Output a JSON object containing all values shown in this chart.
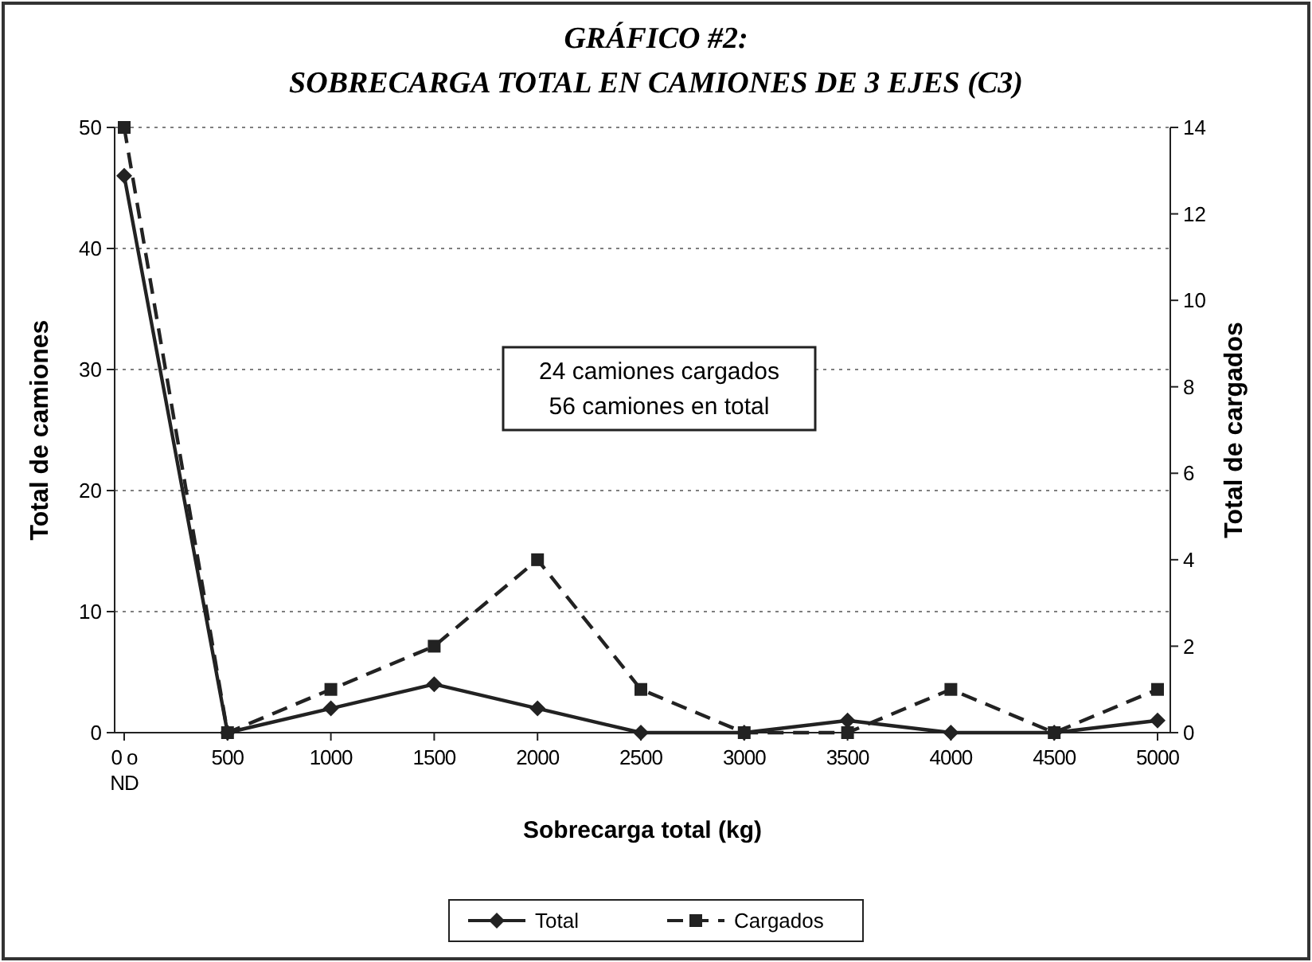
{
  "chart_data": {
    "type": "line",
    "title": "GRÁFICO #2:",
    "subtitle": "SOBRECARGA TOTAL EN CAMIONES DE 3 EJES (C3)",
    "xlabel": "Sobrecarga total (kg)",
    "ylabel": "Total de camiones",
    "y2label": "Total de cargados",
    "categories": [
      "0 o ND",
      "500",
      "1000",
      "1500",
      "2000",
      "2500",
      "3000",
      "3500",
      "4000",
      "4500",
      "5000"
    ],
    "series": [
      {
        "name": "Total",
        "color": "#222222",
        "values": [
          46,
          0,
          2,
          4,
          2,
          0,
          0,
          1,
          0,
          0,
          1
        ],
        "marker": "diamond",
        "line_style": "solid"
      },
      {
        "name": "Cargados",
        "color": "#222222",
        "values": [
          14,
          0,
          1,
          2,
          4,
          1,
          0,
          0,
          1,
          0,
          1
        ],
        "axis": "y2",
        "marker": "square",
        "line_style": "dashed"
      }
    ],
    "ylim": [
      0,
      50
    ],
    "yticks": [
      0,
      10,
      20,
      30,
      40,
      50
    ],
    "y2lim": [
      0,
      14
    ],
    "y2ticks": [
      0,
      2,
      4,
      6,
      8,
      10,
      12,
      14
    ],
    "grid": "y",
    "legend": "bottom",
    "annotations": [
      "24 camiones cargados",
      "56 camiones en total"
    ]
  }
}
